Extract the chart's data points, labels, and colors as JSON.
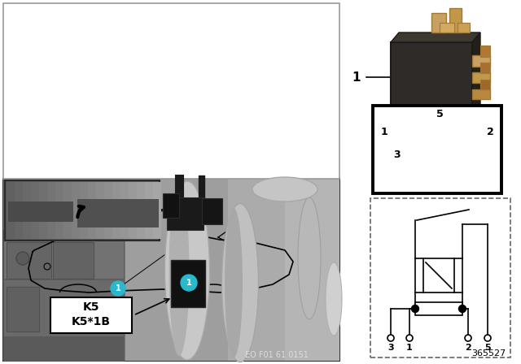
{
  "bg_color": "#ffffff",
  "cyan_color": "#29b8cc",
  "part_number": "365527",
  "eo_code": "EO F01 61 0151",
  "k5_label": "K5",
  "k5_1b_label": "K5*1B",
  "relay_label": "1",
  "car_panel_bg": "#ffffff",
  "car_panel_border": "#cccccc",
  "photo_bg_light": "#b0b0b0",
  "photo_bg_dark": "#808080",
  "inset_bg": "#707070",
  "relay_body": "#2d2a28",
  "relay_pin": "#c8a060",
  "connector_black": "#1a1a1a",
  "pin_box_border": "#000000",
  "schematic_border": "#777777"
}
